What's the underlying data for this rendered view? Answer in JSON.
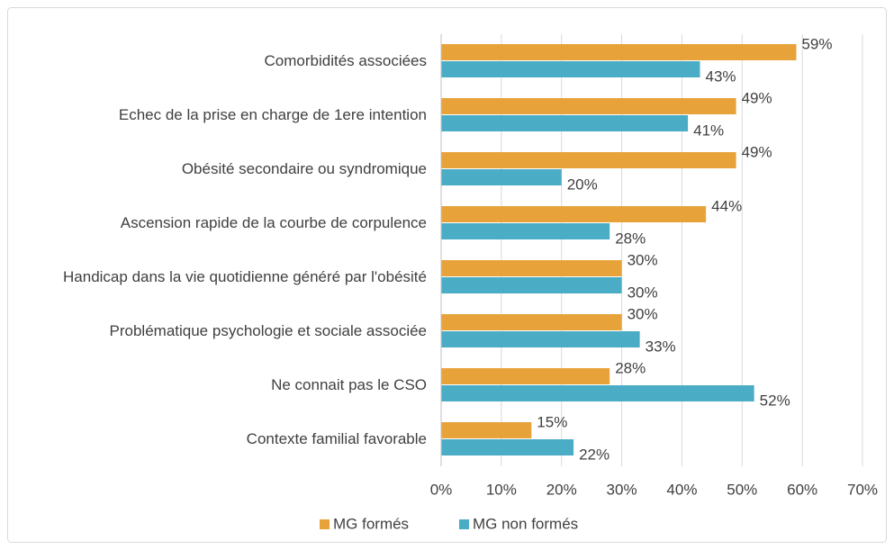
{
  "chart_data": {
    "type": "barh",
    "categories": [
      "Comorbidités associées",
      "Echec de la prise en charge de 1ere intention",
      "Obésité secondaire ou syndromique",
      "Ascension rapide de la courbe de corpulence",
      "Handicap dans la vie quotidienne généré par l'obésité",
      "Problématique psychologie et sociale associée",
      "Ne connait pas le CSO",
      "Contexte familial favorable"
    ],
    "series": [
      {
        "name": "MG formés",
        "color": "#e8a23a",
        "values": [
          59,
          49,
          49,
          44,
          30,
          30,
          28,
          15
        ],
        "value_labels": [
          "59%",
          "49%",
          "49%",
          "44%",
          "30%",
          "30%",
          "28%",
          "15%"
        ]
      },
      {
        "name": "MG non formés",
        "color": "#4bacc6",
        "values": [
          43,
          41,
          20,
          28,
          30,
          33,
          52,
          22
        ],
        "value_labels": [
          "43%",
          "41%",
          "20%",
          "28%",
          "30%",
          "33%",
          "52%",
          "22%"
        ]
      }
    ],
    "xlim": [
      0,
      70
    ],
    "xticks": [
      {
        "value": 0,
        "label": "0%"
      },
      {
        "value": 10,
        "label": "10%"
      },
      {
        "value": 20,
        "label": "20%"
      },
      {
        "value": 30,
        "label": "30%"
      },
      {
        "value": 40,
        "label": "40%"
      },
      {
        "value": 50,
        "label": "50%"
      },
      {
        "value": 60,
        "label": "60%"
      },
      {
        "value": 70,
        "label": "70%"
      }
    ],
    "grid": true,
    "legend": "bottom"
  }
}
